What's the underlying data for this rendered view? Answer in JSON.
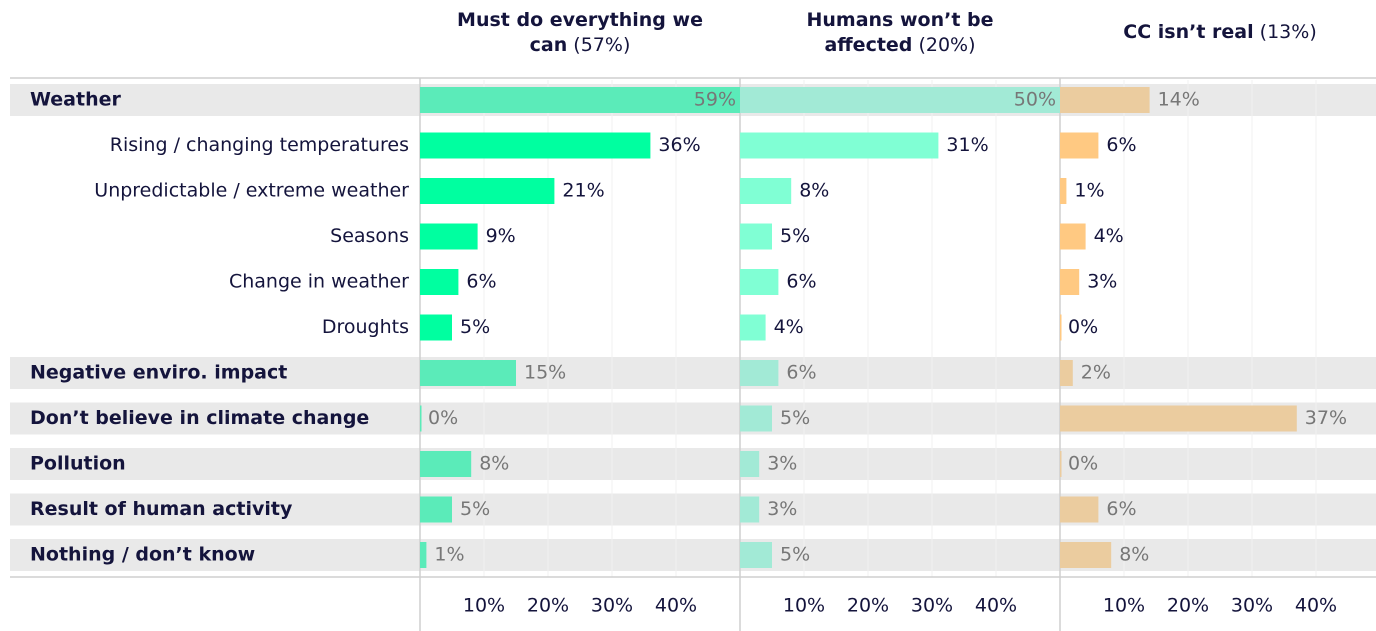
{
  "chart_data": {
    "type": "bar",
    "orientation": "horizontal",
    "categories": [
      "Weather",
      "Rising / changing temperatures",
      "Unpredictable / extreme weather",
      "Seasons",
      "Change in weather",
      "Droughts",
      "Negative enviro. impact",
      "Don’t believe in climate change",
      "Pollution",
      "Result of human activity",
      "Nothing / don’t know"
    ],
    "highlight": [
      true,
      false,
      false,
      false,
      false,
      false,
      true,
      true,
      true,
      true,
      true
    ],
    "xlim": [
      0,
      50
    ],
    "xticks": [
      {
        "value": 10,
        "label": "10%"
      },
      {
        "value": 20,
        "label": "20%"
      },
      {
        "value": 30,
        "label": "30%"
      },
      {
        "value": 40,
        "label": "40%"
      }
    ],
    "grid": true,
    "series": [
      {
        "name": "Must do everything we can",
        "share": {
          "value": 57,
          "label": "(57%)"
        },
        "color": "#00ffa0",
        "highlight_color": "#5bebb9",
        "values": [
          59,
          36,
          21,
          9,
          6,
          5,
          15,
          0,
          8,
          5,
          1
        ],
        "value_labels": [
          "59%",
          "36%",
          "21%",
          "9%",
          "6%",
          "5%",
          "15%",
          "0%",
          "8%",
          "5%",
          "1%"
        ]
      },
      {
        "name": "Humans won’t be affected",
        "share": {
          "value": 20,
          "label": "(20%)"
        },
        "color": "#80ffd4",
        "highlight_color": "#a2ead6",
        "values": [
          50,
          31,
          8,
          5,
          6,
          4,
          6,
          5,
          3,
          3,
          5
        ],
        "value_labels": [
          "50%",
          "31%",
          "8%",
          "5%",
          "6%",
          "4%",
          "6%",
          "5%",
          "3%",
          "3%",
          "5%"
        ]
      },
      {
        "name": "CC isn’t real",
        "share": {
          "value": 13,
          "label": "(13%)"
        },
        "color": "#ffc982",
        "highlight_color": "#ebcc9f",
        "values": [
          14,
          6,
          1,
          4,
          3,
          0,
          2,
          37,
          0,
          6,
          8
        ],
        "value_labels": [
          "14%",
          "6%",
          "1%",
          "4%",
          "3%",
          "0%",
          "2%",
          "37%",
          "0%",
          "6%",
          "8%"
        ]
      }
    ]
  }
}
